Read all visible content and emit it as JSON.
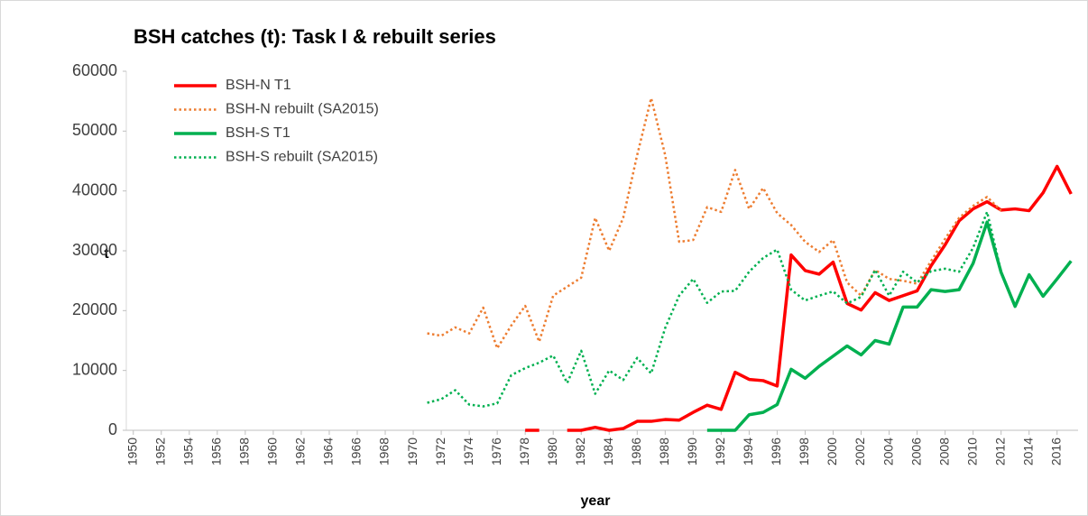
{
  "chart_data": {
    "type": "line",
    "title": "BSH catches (t): Task I & rebuilt series",
    "x_label": "year",
    "y_label": "t",
    "x": [
      1950,
      1951,
      1952,
      1953,
      1954,
      1955,
      1956,
      1957,
      1958,
      1959,
      1960,
      1961,
      1962,
      1963,
      1964,
      1965,
      1966,
      1967,
      1968,
      1969,
      1970,
      1971,
      1972,
      1973,
      1974,
      1975,
      1976,
      1977,
      1978,
      1979,
      1980,
      1981,
      1982,
      1983,
      1984,
      1985,
      1986,
      1987,
      1988,
      1989,
      1990,
      1991,
      1992,
      1993,
      1994,
      1995,
      1996,
      1997,
      1998,
      1999,
      2000,
      2001,
      2002,
      2003,
      2004,
      2005,
      2006,
      2007,
      2008,
      2009,
      2010,
      2011,
      2012,
      2013,
      2014,
      2015,
      2016,
      2017
    ],
    "xlim": [
      1949.5,
      2017.5
    ],
    "xticks": [
      1950,
      1952,
      1954,
      1956,
      1958,
      1960,
      1962,
      1964,
      1966,
      1968,
      1970,
      1972,
      1974,
      1976,
      1978,
      1980,
      1982,
      1984,
      1986,
      1988,
      1990,
      1992,
      1994,
      1996,
      1998,
      2000,
      2002,
      2004,
      2006,
      2008,
      2010,
      2012,
      2014,
      2016
    ],
    "ylim": [
      0,
      60000
    ],
    "yticks": [
      0,
      10000,
      20000,
      30000,
      40000,
      50000,
      60000
    ],
    "series": [
      {
        "name": "BSH-N T1",
        "color": "#ff0000",
        "dashed": false,
        "values": [
          null,
          null,
          null,
          null,
          null,
          null,
          null,
          null,
          null,
          null,
          null,
          null,
          null,
          null,
          null,
          null,
          null,
          null,
          null,
          null,
          null,
          null,
          null,
          null,
          null,
          null,
          null,
          null,
          0,
          0,
          null,
          0,
          0,
          500,
          0,
          300,
          1500,
          1500,
          1800,
          1700,
          3000,
          4200,
          3500,
          9700,
          8500,
          8300,
          7400,
          29300,
          26700,
          26100,
          28100,
          21200,
          20100,
          23000,
          21700,
          22500,
          23300,
          27500,
          31000,
          35000,
          37000,
          38200,
          36800,
          37000,
          36700,
          39700,
          44100,
          39500
        ]
      },
      {
        "name": "BSH-N rebuilt (SA2015)",
        "color": "#ed7d31",
        "dashed": true,
        "values": [
          null,
          null,
          null,
          null,
          null,
          null,
          null,
          null,
          null,
          null,
          null,
          null,
          null,
          null,
          null,
          null,
          null,
          null,
          null,
          null,
          null,
          16200,
          15800,
          17200,
          16200,
          20500,
          13700,
          17500,
          20800,
          14800,
          22500,
          24000,
          25500,
          35500,
          30000,
          35500,
          46000,
          55500,
          46000,
          31500,
          31800,
          37300,
          36500,
          43500,
          37000,
          40500,
          36300,
          34300,
          31500,
          29800,
          31800,
          24700,
          22500,
          26800,
          25300,
          25000,
          24500,
          28300,
          32000,
          35500,
          37500,
          39000,
          36700,
          null,
          null,
          null,
          null,
          null
        ]
      },
      {
        "name": "BSH-S T1",
        "color": "#00b050",
        "dashed": false,
        "values": [
          null,
          null,
          null,
          null,
          null,
          null,
          null,
          null,
          null,
          null,
          null,
          null,
          null,
          null,
          null,
          null,
          null,
          null,
          null,
          null,
          null,
          null,
          null,
          null,
          null,
          null,
          null,
          null,
          null,
          null,
          null,
          null,
          null,
          null,
          null,
          null,
          null,
          null,
          null,
          null,
          null,
          0,
          0,
          0,
          2600,
          3000,
          4300,
          10200,
          8700,
          10700,
          12400,
          14100,
          12600,
          15000,
          14400,
          20600,
          20600,
          23500,
          23200,
          23500,
          27900,
          34800,
          26400,
          20700,
          26000,
          22400,
          25300,
          28300
        ]
      },
      {
        "name": "BSH-S rebuilt (SA2015)",
        "color": "#00b050",
        "dashed": true,
        "values": [
          null,
          null,
          null,
          null,
          null,
          null,
          null,
          null,
          null,
          null,
          null,
          null,
          null,
          null,
          null,
          null,
          null,
          null,
          null,
          null,
          null,
          4600,
          5200,
          6700,
          4300,
          4000,
          4500,
          9200,
          10400,
          11300,
          12500,
          7900,
          13300,
          6100,
          10000,
          8400,
          12100,
          9500,
          17100,
          22500,
          25300,
          21300,
          23200,
          23300,
          26500,
          28800,
          30200,
          23500,
          21700,
          22500,
          23200,
          21200,
          22300,
          26800,
          22500,
          26500,
          24700,
          26600,
          27000,
          26500,
          30500,
          36500,
          26500,
          null,
          null,
          null,
          null,
          null
        ]
      }
    ]
  }
}
